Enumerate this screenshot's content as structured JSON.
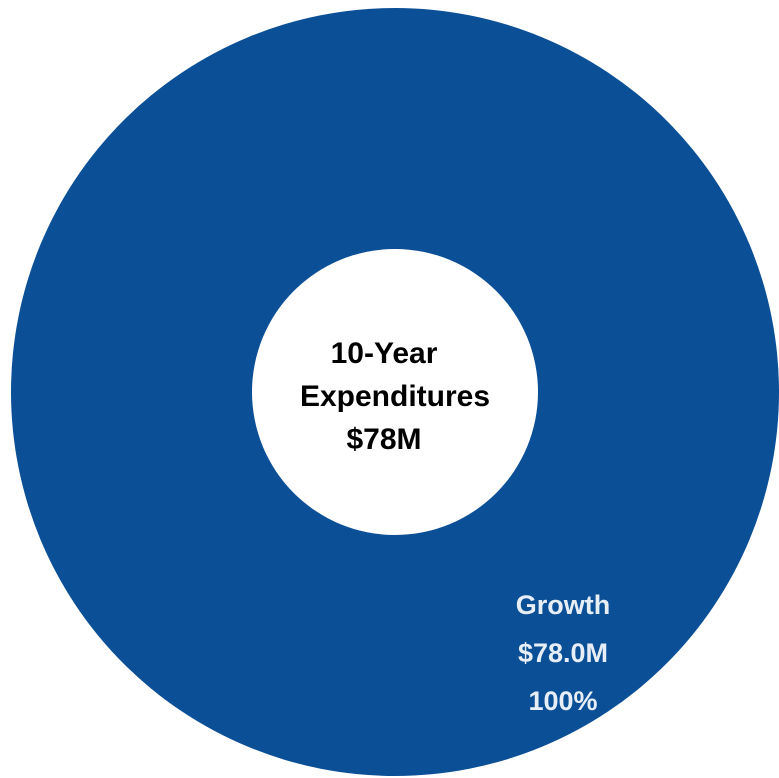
{
  "chart_data": {
    "type": "pie",
    "center_label": [
      "10-Year",
      "Expenditures",
      "$78M"
    ],
    "slices": [
      {
        "name": "Growth",
        "value": 78.0,
        "value_label": "$78.0M",
        "percent": 100,
        "percent_label": "100%",
        "color": "#0B4F96"
      }
    ],
    "colors": {
      "label_text": "#E8EEF6",
      "center_text": "#000000",
      "hole": "#FFFFFF"
    }
  }
}
